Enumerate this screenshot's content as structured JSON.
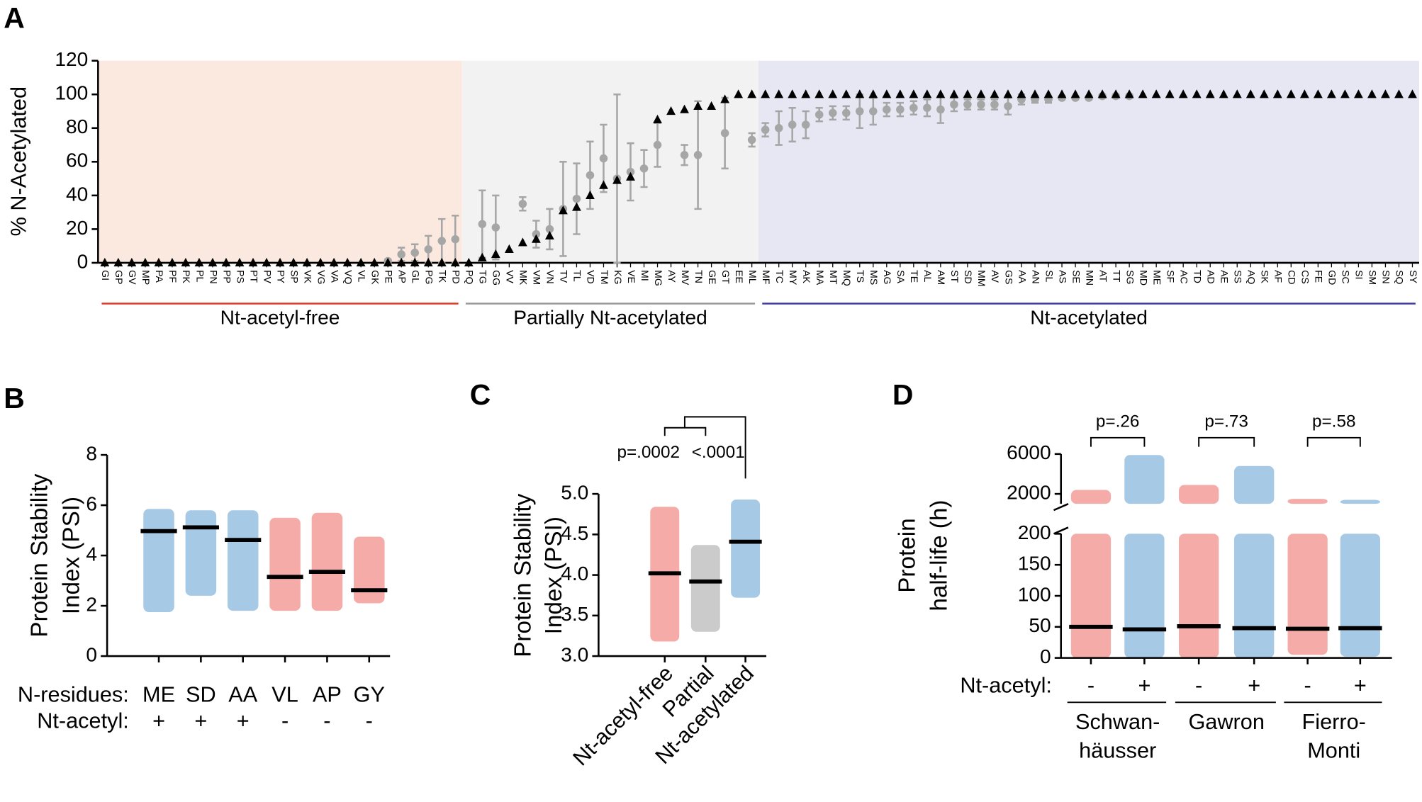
{
  "chart_data": [
    {
      "panel_label": "A",
      "type": "dot",
      "ylabel": "% N-Acetylated",
      "ylim": [
        0,
        120
      ],
      "yticks": [
        0,
        20,
        40,
        60,
        80,
        100,
        120
      ],
      "groups": [
        {
          "name": "Nt-acetyl-free",
          "color": "#e0392b",
          "background": "#fbe9df",
          "categories": [
            "GI",
            "GP",
            "GV",
            "MP",
            "PA",
            "PF",
            "PK",
            "PL",
            "PN",
            "PP",
            "PS",
            "PT",
            "PV",
            "PY",
            "SP",
            "VK",
            "VG",
            "VA",
            "VQ",
            "VL",
            "GK",
            "PE",
            "AP",
            "GL",
            "PG",
            "TK",
            "PD"
          ]
        },
        {
          "name": "Partially Nt-acetylated",
          "color": "#999999",
          "background": "#f2f2f2",
          "categories": [
            "PQ",
            "TG",
            "GG",
            "VV",
            "MK",
            "VM",
            "VN",
            "TV",
            "TL",
            "VD",
            "TM",
            "KG",
            "VE",
            "MI",
            "MG",
            "AY",
            "MV",
            "TN",
            "GE",
            "GT",
            "EE",
            "ML"
          ]
        },
        {
          "name": "Nt-acetylated",
          "color": "#3b3ba0",
          "background": "#e6e7f3",
          "categories": [
            "MF",
            "TC",
            "MY",
            "AK",
            "MA",
            "MT",
            "MQ",
            "TS",
            "MS",
            "AG",
            "SA",
            "TE",
            "AL",
            "AM",
            "ST",
            "SD",
            "MM",
            "AV",
            "GS",
            "AA",
            "AN",
            "SL",
            "AS",
            "SE",
            "MN",
            "AT",
            "TT",
            "SG",
            "MD",
            "ME",
            "SF",
            "AC",
            "TD",
            "AD",
            "AE",
            "SS",
            "AQ",
            "SK",
            "AF",
            "CD",
            "CS",
            "FE",
            "GD",
            "SC",
            "SI",
            "SM",
            "SN",
            "SQ",
            "SY"
          ]
        }
      ],
      "series": [
        {
          "marker": "circle",
          "color": "#a6a6a6",
          "values": [
            null,
            null,
            null,
            null,
            null,
            null,
            null,
            null,
            null,
            null,
            null,
            null,
            null,
            null,
            null,
            null,
            null,
            null,
            null,
            null,
            null,
            1,
            5,
            6,
            8,
            13,
            14,
            null,
            23,
            21,
            null,
            35,
            17,
            20,
            32,
            38,
            52,
            62,
            50,
            54,
            56,
            70,
            null,
            64,
            64,
            null,
            77,
            null,
            73,
            79,
            80,
            82,
            82,
            88,
            89,
            89,
            90,
            90,
            91,
            91,
            92,
            92,
            91,
            94,
            94,
            94,
            94,
            93,
            97,
            97,
            97,
            98,
            98,
            98,
            99,
            99,
            99,
            null,
            null,
            null,
            null,
            null,
            null,
            null,
            null,
            null,
            null,
            null,
            null,
            null,
            null,
            null,
            null,
            null,
            null,
            null,
            null,
            null
          ],
          "errors": [
            null,
            null,
            null,
            null,
            null,
            null,
            null,
            null,
            null,
            null,
            null,
            null,
            null,
            null,
            null,
            null,
            null,
            null,
            null,
            null,
            null,
            1,
            4,
            5,
            8,
            13,
            14,
            null,
            20,
            19,
            null,
            4,
            8,
            12,
            28,
            21,
            20,
            20,
            50,
            17,
            11,
            13,
            null,
            6,
            32,
            null,
            21,
            null,
            4,
            4,
            10,
            10,
            8,
            4,
            4,
            4,
            10,
            8,
            4,
            4,
            4,
            5,
            8,
            4,
            3,
            3,
            3,
            5,
            3,
            2,
            2,
            1,
            1,
            1,
            1,
            1,
            1,
            null,
            null,
            null,
            null,
            null,
            null,
            null,
            null,
            null,
            null,
            null,
            null,
            null,
            null,
            null,
            null,
            null,
            null,
            null,
            null,
            null
          ]
        },
        {
          "marker": "triangle",
          "color": "#000000",
          "values": [
            0,
            0,
            0,
            0,
            0,
            0,
            0,
            0,
            0,
            0,
            0,
            0,
            0,
            0,
            0,
            0,
            0,
            0,
            0,
            0,
            0,
            0,
            0,
            0,
            0,
            0,
            0,
            0,
            3,
            5,
            8,
            12,
            14,
            16,
            31,
            33,
            40,
            46,
            49,
            51,
            null,
            85,
            90,
            91,
            93,
            93,
            97,
            100,
            100,
            100,
            100,
            100,
            100,
            100,
            100,
            100,
            100,
            100,
            100,
            100,
            100,
            100,
            100,
            100,
            100,
            100,
            100,
            100,
            100,
            100,
            100,
            100,
            100,
            100,
            100,
            100,
            100,
            100,
            100,
            100,
            100,
            100,
            100,
            100,
            100,
            100,
            100,
            100,
            100,
            100,
            100,
            100,
            100,
            100,
            100,
            100,
            100,
            100
          ]
        }
      ]
    },
    {
      "panel_label": "B",
      "type": "strip",
      "ylabel": [
        "Protein Stability",
        "Index (PSI)"
      ],
      "ylim": [
        0,
        8
      ],
      "yticks": [
        0,
        2,
        4,
        6,
        8
      ],
      "row_labels": [
        "N-residues:",
        "Nt-acetyl:"
      ],
      "categories": [
        "ME",
        "SD",
        "AA",
        "VL",
        "AP",
        "GY"
      ],
      "acetyl": [
        "+",
        "+",
        "+",
        "-",
        "-",
        "-"
      ],
      "colors": [
        "#3a87c8",
        "#3a87c8",
        "#3a87c8",
        "#e8473e",
        "#e8473e",
        "#e8473e"
      ],
      "values": [
        4.97,
        5.12,
        4.62,
        3.15,
        3.35,
        2.62
      ],
      "ranges": [
        [
          1.75,
          5.85
        ],
        [
          2.4,
          5.8
        ],
        [
          1.8,
          5.8
        ],
        [
          1.8,
          5.5
        ],
        [
          1.8,
          5.7
        ],
        [
          2.1,
          4.75
        ]
      ]
    },
    {
      "panel_label": "C",
      "type": "strip",
      "ylabel": [
        "Protein Stability",
        "Index (PSI)"
      ],
      "ylim": [
        3,
        5
      ],
      "yticks": [
        {
          "value": 3,
          "label": "3.0"
        },
        3.5,
        {
          "value": 4,
          "label": "4.0"
        },
        4.5,
        {
          "value": 5,
          "label": "5.0"
        }
      ],
      "categories": [
        "Nt-acetyl-free",
        "Partial",
        "Nt-acetylated"
      ],
      "colors": [
        "#e8473e",
        "#8c8c8c",
        "#3a87c8"
      ],
      "values": [
        4.02,
        3.92,
        4.41
      ],
      "ranges": [
        [
          3.18,
          4.84
        ],
        [
          3.3,
          4.37
        ],
        [
          3.72,
          4.93
        ]
      ],
      "comparisons": [
        "p=.0002",
        "<.0001"
      ]
    },
    {
      "panel_label": "D",
      "type": "strip",
      "ylabel": [
        "Protein",
        "half-life (h)"
      ],
      "ylim": [
        0,
        200
      ],
      "yticks": [
        0,
        50,
        100,
        150,
        200
      ],
      "ylim_upper": [
        1000,
        6000
      ],
      "yticks_upper": [
        2000,
        6000
      ],
      "row_label": "Nt-acetyl:",
      "acetyl": [
        "-",
        "+",
        "-",
        "+",
        "-",
        "+"
      ],
      "colors": [
        "#e8473e",
        "#3a87c8",
        "#e8473e",
        "#3a87c8",
        "#e8473e",
        "#3a87c8"
      ],
      "values": [
        50,
        46,
        51,
        48,
        47,
        48
      ],
      "ranges": [
        [
          0,
          2400
        ],
        [
          0,
          5900
        ],
        [
          0,
          2900
        ],
        [
          0,
          4800
        ],
        [
          5,
          1500
        ],
        [
          2,
          1400
        ]
      ],
      "datasets": [
        {
          "name": [
            "Schwan-",
            "häusser"
          ],
          "p_label": "p=.26"
        },
        {
          "name": [
            "Gawron"
          ],
          "p_label": "p=.73"
        },
        {
          "name": [
            "Fierro-",
            "Monti"
          ],
          "p_label": "p=.58"
        }
      ]
    }
  ]
}
